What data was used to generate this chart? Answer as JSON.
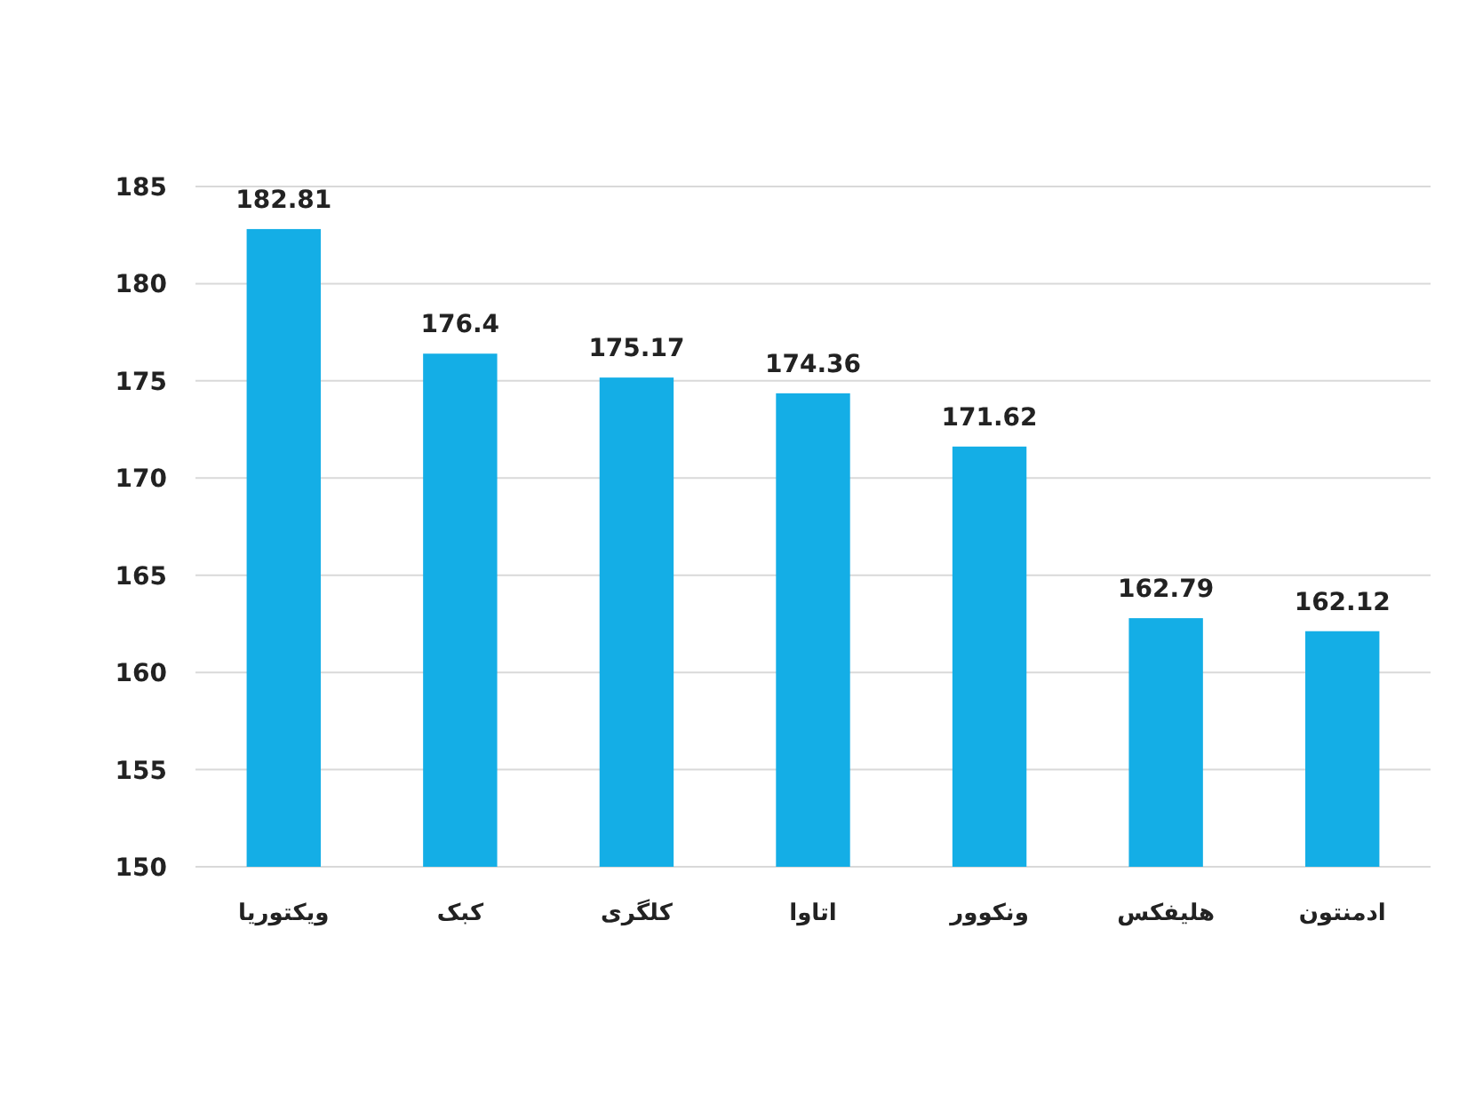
{
  "chart_data": {
    "type": "bar",
    "categories": [
      "ویکتوریا",
      "کبک",
      "کلگری",
      "اتاوا",
      "ونکوور",
      "هلیفکس",
      "ادمنتون"
    ],
    "values": [
      182.81,
      176.4,
      175.17,
      174.36,
      171.62,
      162.79,
      162.12
    ],
    "color": "#14aee6",
    "ylim": [
      150,
      185
    ],
    "yticks": [
      150,
      155,
      160,
      165,
      170,
      175,
      180,
      185
    ],
    "grid": "y",
    "data_labels": true
  }
}
